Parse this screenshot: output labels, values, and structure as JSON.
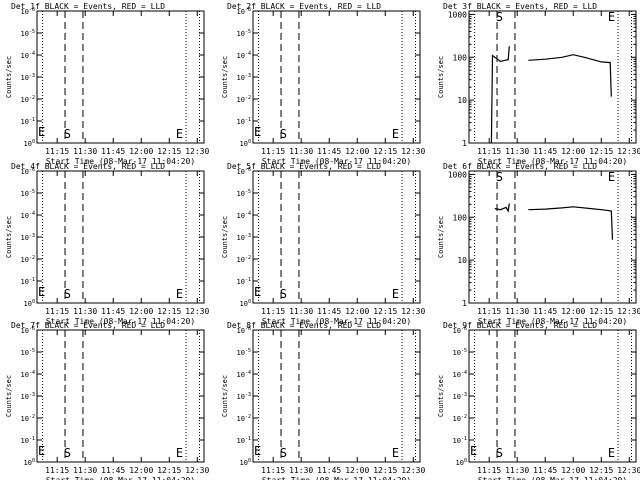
{
  "chart_data": [
    {
      "type": "line",
      "title": "Det 1f BLACK = Events, RED = LLD",
      "ylabel": "Counts/sec",
      "xlabel": "Start Time (08-Mar-17 11:04:20)",
      "x_ticks": [
        "11:15",
        "11:30",
        "11:45",
        "12:00",
        "12:15",
        "12:30"
      ],
      "y_ticks": [
        "10^0",
        "10^-1",
        "10^-2",
        "10^-3",
        "10^-4",
        "10^-5",
        "10^-6"
      ],
      "markers": {
        "start": "S",
        "end": "E"
      },
      "series": []
    },
    {
      "type": "line",
      "title": "Det 2f BLACK = Events, RED = LLD",
      "ylabel": "Counts/sec",
      "xlabel": "Start Time (08-Mar-17 11:04:20)",
      "x_ticks": [
        "11:15",
        "11:30",
        "11:45",
        "12:00",
        "12:15",
        "12:30"
      ],
      "y_ticks": [
        "10^0",
        "10^-1",
        "10^-2",
        "10^-3",
        "10^-4",
        "10^-5",
        "10^-6"
      ],
      "markers": {
        "start": "S",
        "end": "E"
      },
      "series": []
    },
    {
      "type": "line",
      "title": "Det 3f BLACK = Events, RED = LLD",
      "ylabel": "Counts/sec",
      "xlabel": "Start Time (08-Mar-17 11:04:20)",
      "x_ticks": [
        "11:15",
        "11:30",
        "11:45",
        "12:00",
        "12:15",
        "12:30"
      ],
      "y_ticks": [
        "1000",
        "100",
        "10",
        "1"
      ],
      "markers": {
        "start": "S",
        "end": "E"
      },
      "series": [
        {
          "color": "#000000",
          "segments": [
            [
              [
                11.27,
                1
              ],
              [
                11.28,
                110
              ],
              [
                11.35,
                80
              ],
              [
                11.42,
                88
              ],
              [
                11.43,
                180
              ]
            ],
            [
              [
                11.6,
                85
              ],
              [
                11.75,
                90
              ],
              [
                11.9,
                100
              ],
              [
                12.0,
                115
              ],
              [
                12.1,
                100
              ],
              [
                12.25,
                78
              ],
              [
                12.33,
                75
              ],
              [
                12.34,
                12
              ]
            ]
          ]
        }
      ]
    },
    {
      "type": "line",
      "title": "Det 4f BLACK = Events, RED = LLD",
      "ylabel": "Counts/sec",
      "xlabel": "Start Time (08-Mar-17 11:04:20)",
      "x_ticks": [
        "11:15",
        "11:30",
        "11:45",
        "12:00",
        "12:15",
        "12:30"
      ],
      "y_ticks": [
        "10^0",
        "10^-1",
        "10^-2",
        "10^-3",
        "10^-4",
        "10^-5",
        "10^-6"
      ],
      "markers": {
        "start": "S",
        "end": "E"
      },
      "series": []
    },
    {
      "type": "line",
      "title": "Det 5f BLACK = Events, RED = LLD",
      "ylabel": "Counts/sec",
      "xlabel": "Start Time (08-Mar-17 11:04:20)",
      "x_ticks": [
        "11:15",
        "11:30",
        "11:45",
        "12:00",
        "12:15",
        "12:30"
      ],
      "y_ticks": [
        "10^0",
        "10^-1",
        "10^-2",
        "10^-3",
        "10^-4",
        "10^-5",
        "10^-6"
      ],
      "markers": {
        "start": "S",
        "end": "E"
      },
      "series": []
    },
    {
      "type": "line",
      "title": "Det 6f BLACK = Events, RED = LLD",
      "ylabel": "Counts/sec",
      "xlabel": "Start Time (08-Mar-17 11:04:20)",
      "x_ticks": [
        "11:15",
        "11:30",
        "11:45",
        "12:00",
        "12:15",
        "12:30"
      ],
      "y_ticks": [
        "1000",
        "100",
        "10",
        "1"
      ],
      "markers": {
        "start": "S",
        "end": "E"
      },
      "series": [
        {
          "color": "#000000",
          "segments": [
            [
              [
                11.3,
                160
              ],
              [
                11.35,
                150
              ],
              [
                11.4,
                170
              ],
              [
                11.42,
                140
              ],
              [
                11.43,
                210
              ]
            ],
            [
              [
                11.6,
                150
              ],
              [
                11.75,
                155
              ],
              [
                11.9,
                165
              ],
              [
                12.0,
                175
              ],
              [
                12.15,
                160
              ],
              [
                12.3,
                145
              ],
              [
                12.34,
                140
              ],
              [
                12.35,
                30
              ]
            ]
          ]
        }
      ]
    },
    {
      "type": "line",
      "title": "Det 7f BLACK = Events, RED = LLD",
      "ylabel": "Counts/sec",
      "xlabel": "Start Time (08-Mar-17 11:04:20)",
      "x_ticks": [
        "11:15",
        "11:30",
        "11:45",
        "12:00",
        "12:15",
        "12:30"
      ],
      "y_ticks": [
        "10^0",
        "10^-1",
        "10^-2",
        "10^-3",
        "10^-4",
        "10^-5",
        "10^-6"
      ],
      "markers": {
        "start": "S",
        "end": "E"
      },
      "series": []
    },
    {
      "type": "line",
      "title": "Det 8f BLACK = Events, RED = LLD",
      "ylabel": "Counts/sec",
      "xlabel": "Start Time (08-Mar-17 11:04:20)",
      "x_ticks": [
        "11:15",
        "11:30",
        "11:45",
        "12:00",
        "12:15",
        "12:30"
      ],
      "y_ticks": [
        "10^0",
        "10^-1",
        "10^-2",
        "10^-3",
        "10^-4",
        "10^-5",
        "10^-6"
      ],
      "markers": {
        "start": "S",
        "end": "E"
      },
      "series": []
    },
    {
      "type": "line",
      "title": "Det 9f BLACK = Events, RED = LLD",
      "ylabel": "Counts/sec",
      "xlabel": "Start Time (08-Mar-17 11:04:20)",
      "x_ticks": [
        "11:15",
        "11:30",
        "11:45",
        "12:00",
        "12:15",
        "12:30"
      ],
      "y_ticks": [
        "10^0",
        "10^-1",
        "10^-2",
        "10^-3",
        "10^-4",
        "10^-5",
        "10^-6"
      ],
      "markers": {
        "start": "S",
        "end": "E"
      },
      "series": []
    }
  ]
}
